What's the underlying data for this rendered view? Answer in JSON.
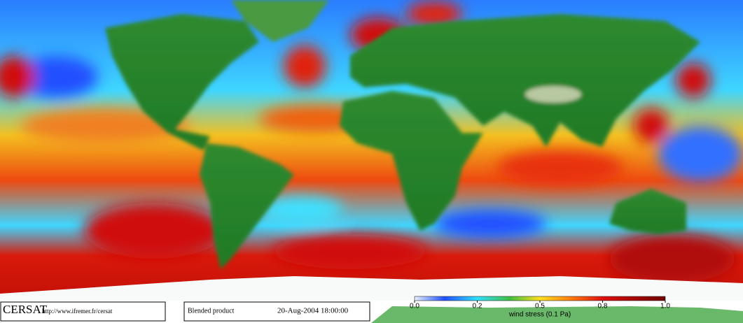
{
  "footer": {
    "logo": "CERSAT",
    "url": "http://www.ifremer.fr/cersat",
    "product": "Blended product",
    "datetime": "20-Aug-2004 18:00:00"
  },
  "colorbar": {
    "ticks": [
      {
        "value": 0,
        "label": "0.0"
      },
      {
        "value": 0.2,
        "label": "0.2"
      },
      {
        "value": 0.5,
        "label": "0.5"
      },
      {
        "value": 0.8,
        "label": "0.8"
      },
      {
        "value": 1,
        "label": "1.0"
      }
    ],
    "label": "wind stress (0.1 Pa)"
  }
}
